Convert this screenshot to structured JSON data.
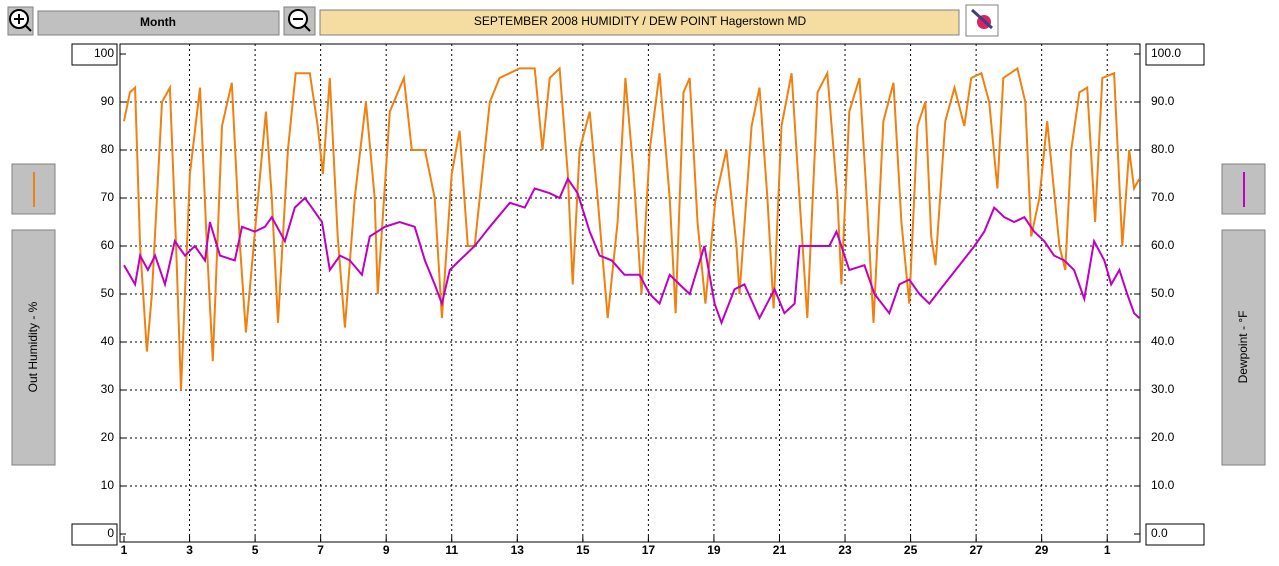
{
  "toolbar": {
    "period": "Month"
  },
  "chart_data": {
    "type": "line",
    "title": "SEPTEMBER  2008    HUMIDITY / DEW POINT  Hagerstown MD",
    "ylabel": "Out Humidity - %",
    "y2label": "Dewpoint - °F",
    "xlim": [
      1,
      32
    ],
    "xticks": [
      1,
      3,
      5,
      7,
      9,
      11,
      13,
      15,
      17,
      19,
      21,
      23,
      25,
      27,
      29,
      {
        "value": 31,
        "label": "1"
      }
    ],
    "ylim": [
      0,
      100
    ],
    "yticks": [
      0,
      10,
      20,
      30,
      40,
      50,
      60,
      70,
      80,
      90,
      100
    ],
    "y2lim": [
      0,
      100
    ],
    "y2ticks": [
      {
        "value": 0,
        "label": "0.0"
      },
      {
        "value": 10,
        "label": "10.0"
      },
      {
        "value": 20,
        "label": "20.0"
      },
      {
        "value": 30,
        "label": "30.0"
      },
      {
        "value": 40,
        "label": "40.0"
      },
      {
        "value": 50,
        "label": "50.0"
      },
      {
        "value": 60,
        "label": "60.0"
      },
      {
        "value": 70,
        "label": "70.0"
      },
      {
        "value": 80,
        "label": "80.0"
      },
      {
        "value": 90,
        "label": "90.0"
      },
      {
        "value": 100,
        "label": "100.0"
      }
    ],
    "grid": true,
    "series": [
      {
        "color": "#f08010",
        "axis": "y",
        "x": [
          1.0,
          1.18,
          1.34,
          1.49,
          1.7,
          1.85,
          2.16,
          2.4,
          2.59,
          2.74,
          3.01,
          3.32,
          3.53,
          3.71,
          3.99,
          4.29,
          4.54,
          4.72,
          5.02,
          5.33,
          5.51,
          5.7,
          6.0,
          6.24,
          6.67,
          6.91,
          7.07,
          7.28,
          7.52,
          7.74,
          8.04,
          8.38,
          8.65,
          8.74,
          9.11,
          9.54,
          9.78,
          10.18,
          10.48,
          10.7,
          11.0,
          11.24,
          11.49,
          11.7,
          12.16,
          12.46,
          13.07,
          13.53,
          13.77,
          13.99,
          14.29,
          14.54,
          14.69,
          14.9,
          15.21,
          15.45,
          15.76,
          16.06,
          16.3,
          16.55,
          16.79,
          17.04,
          17.34,
          17.65,
          17.83,
          18.07,
          18.26,
          18.5,
          18.74,
          19.05,
          19.38,
          19.69,
          19.78,
          20.15,
          20.39,
          20.63,
          20.82,
          21.06,
          21.37,
          21.61,
          21.85,
          22.16,
          22.46,
          22.77,
          22.89,
          23.13,
          23.44,
          23.68,
          23.87,
          24.17,
          24.48,
          24.72,
          24.96,
          25.21,
          25.45,
          25.63,
          25.76,
          26.06,
          26.34,
          26.64,
          26.85,
          27.16,
          27.4,
          27.65,
          27.83,
          28.26,
          28.5,
          28.68,
          28.93,
          29.17,
          29.54,
          29.72,
          29.9,
          30.15,
          30.39,
          30.63,
          30.85,
          31.21,
          31.46,
          31.67,
          31.82,
          31.98
        ],
        "values": [
          86,
          92,
          93,
          60,
          38,
          50,
          90,
          93,
          60,
          30,
          75,
          93,
          60,
          36,
          85,
          94,
          60,
          42,
          65,
          88,
          70,
          44,
          80,
          96,
          96,
          85,
          75,
          95,
          62,
          43,
          70,
          90,
          70,
          50,
          88,
          95,
          80,
          80,
          70,
          45,
          75,
          84,
          60,
          60,
          90,
          95,
          97,
          97,
          80,
          95,
          97,
          75,
          52,
          80,
          88,
          70,
          45,
          65,
          95,
          75,
          50,
          80,
          96,
          70,
          46,
          92,
          95,
          65,
          48,
          70,
          80,
          60,
          50,
          85,
          93,
          70,
          47,
          85,
          96,
          70,
          45,
          92,
          96,
          70,
          52,
          88,
          95,
          68,
          44,
          86,
          94,
          65,
          48,
          85,
          90,
          62,
          56,
          86,
          93,
          85,
          95,
          96,
          90,
          72,
          95,
          97,
          90,
          62,
          70,
          86,
          60,
          55,
          80,
          92,
          93,
          65,
          95,
          96,
          60,
          80,
          72,
          74
        ]
      },
      {
        "color": "#c000c0",
        "axis": "y2",
        "x": [
          1.0,
          1.34,
          1.49,
          1.73,
          1.95,
          2.25,
          2.55,
          2.86,
          3.16,
          3.47,
          3.62,
          3.93,
          4.38,
          4.6,
          4.99,
          5.3,
          5.51,
          5.91,
          6.21,
          6.52,
          6.73,
          7.04,
          7.28,
          7.59,
          7.89,
          8.26,
          8.5,
          8.96,
          9.41,
          9.87,
          10.18,
          10.48,
          10.7,
          10.94,
          11.24,
          11.7,
          12.16,
          12.77,
          13.23,
          13.53,
          13.99,
          14.29,
          14.54,
          14.84,
          15.21,
          15.51,
          15.88,
          16.27,
          16.73,
          17.04,
          17.34,
          17.65,
          17.95,
          18.26,
          18.71,
          19.02,
          19.23,
          19.63,
          19.93,
          20.39,
          20.85,
          21.15,
          21.46,
          21.61,
          22.07,
          22.52,
          22.74,
          23.13,
          23.59,
          23.9,
          24.35,
          24.66,
          24.96,
          25.27,
          25.57,
          26.03,
          26.49,
          26.95,
          27.25,
          27.55,
          27.86,
          28.16,
          28.47,
          28.77,
          29.08,
          29.38,
          29.69,
          29.99,
          30.3,
          30.6,
          30.91,
          31.12,
          31.37,
          31.61,
          31.82,
          31.98
        ],
        "values": [
          56,
          52,
          58,
          55,
          58,
          52,
          61,
          58,
          60,
          57,
          65,
          58,
          57,
          64,
          63,
          64,
          66,
          61,
          68,
          70,
          68,
          65,
          55,
          58,
          57,
          54,
          62,
          64,
          65,
          64,
          57,
          52,
          48,
          55,
          57,
          60,
          64,
          69,
          68,
          72,
          71,
          70,
          74,
          71,
          63,
          58,
          57,
          54,
          54,
          50,
          48,
          54,
          52,
          50,
          60,
          48,
          44,
          51,
          52,
          45,
          51,
          46,
          48,
          60,
          60,
          60,
          63,
          55,
          56,
          50,
          46,
          52,
          53,
          50,
          48,
          52,
          56,
          60,
          63,
          68,
          66,
          65,
          66,
          63,
          61,
          58,
          57,
          55,
          49,
          61,
          57,
          52,
          55,
          50,
          46,
          45
        ]
      }
    ]
  }
}
